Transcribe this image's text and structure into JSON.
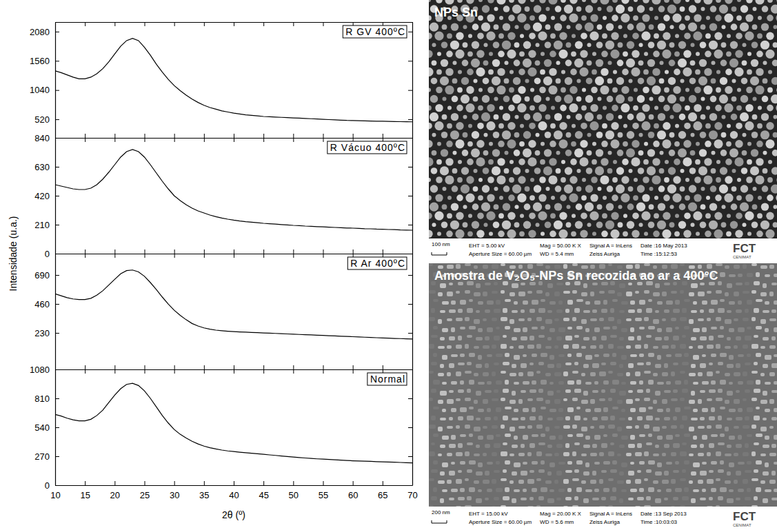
{
  "chart_data": [
    {
      "type": "line",
      "title": "R GV 400ºC",
      "color": "#000000",
      "tick_labels": "y",
      "xlim": [
        10,
        70
      ],
      "xticks": [
        10,
        15,
        20,
        25,
        30,
        35,
        40,
        45,
        50,
        55,
        60,
        65,
        70
      ],
      "ylim": [
        190,
        2250
      ],
      "yticks": [
        520,
        1040,
        1560,
        2080
      ],
      "x": [
        10,
        11,
        12,
        13,
        14,
        15,
        16,
        17,
        18,
        19,
        20,
        21,
        22,
        23,
        24,
        25,
        26,
        27,
        28,
        29,
        30,
        31,
        32,
        33,
        34,
        35,
        36,
        37,
        38,
        39,
        40,
        41,
        42,
        43,
        44,
        45,
        46,
        47,
        48,
        49,
        50,
        51,
        52,
        53,
        54,
        55,
        56,
        57,
        58,
        59,
        60,
        61,
        62,
        63,
        64,
        65,
        66,
        67,
        68,
        69,
        70
      ],
      "values": [
        1380,
        1350,
        1310,
        1270,
        1240,
        1240,
        1270,
        1330,
        1420,
        1540,
        1680,
        1820,
        1920,
        1960,
        1920,
        1800,
        1660,
        1500,
        1360,
        1230,
        1120,
        1030,
        950,
        880,
        820,
        770,
        730,
        700,
        670,
        650,
        630,
        615,
        600,
        590,
        580,
        570,
        565,
        560,
        555,
        550,
        545,
        540,
        535,
        530,
        525,
        520,
        515,
        510,
        505,
        500,
        498,
        495,
        492,
        490,
        487,
        485,
        482,
        480,
        478,
        476,
        475
      ]
    },
    {
      "type": "line",
      "title": "R Vácuo 400ºC",
      "color": "#000000",
      "tick_labels": "y",
      "xlim": [
        10,
        70
      ],
      "xticks": [
        10,
        15,
        20,
        25,
        30,
        35,
        40,
        45,
        50,
        55,
        60,
        65,
        70
      ],
      "ylim": [
        0,
        840
      ],
      "yticks": [
        0,
        210,
        420,
        630,
        840
      ],
      "x": [
        10,
        11,
        12,
        13,
        14,
        15,
        16,
        17,
        18,
        19,
        20,
        21,
        22,
        23,
        24,
        25,
        26,
        27,
        28,
        29,
        30,
        31,
        32,
        33,
        34,
        35,
        36,
        37,
        38,
        39,
        40,
        41,
        42,
        43,
        44,
        45,
        46,
        47,
        48,
        49,
        50,
        51,
        52,
        53,
        54,
        55,
        56,
        57,
        58,
        59,
        60,
        61,
        62,
        63,
        64,
        65,
        66,
        67,
        68,
        69,
        70
      ],
      "values": [
        500,
        490,
        480,
        470,
        465,
        465,
        475,
        500,
        540,
        590,
        645,
        700,
        740,
        755,
        740,
        700,
        645,
        585,
        525,
        470,
        420,
        385,
        355,
        330,
        310,
        295,
        280,
        268,
        258,
        250,
        243,
        237,
        232,
        228,
        224,
        220,
        217,
        214,
        211,
        208,
        205,
        203,
        200,
        198,
        196,
        194,
        192,
        190,
        188,
        186,
        185,
        183,
        181,
        180,
        178,
        177,
        175,
        174,
        172,
        171,
        170
      ]
    },
    {
      "type": "line",
      "title": "R Ar 400ºC",
      "color": "#000000",
      "tick_labels": "y",
      "xlim": [
        10,
        70
      ],
      "xticks": [
        10,
        15,
        20,
        25,
        30,
        35,
        40,
        45,
        50,
        55,
        60,
        65,
        70
      ],
      "ylim": [
        -60,
        860
      ],
      "yticks": [
        230,
        460,
        690
      ],
      "x": [
        10,
        11,
        12,
        13,
        14,
        15,
        16,
        17,
        18,
        19,
        20,
        21,
        22,
        23,
        24,
        25,
        26,
        27,
        28,
        29,
        30,
        31,
        32,
        33,
        34,
        35,
        36,
        37,
        38,
        39,
        40,
        41,
        42,
        43,
        44,
        45,
        46,
        47,
        48,
        49,
        50,
        51,
        52,
        53,
        54,
        55,
        56,
        57,
        58,
        59,
        60,
        61,
        62,
        63,
        64,
        65,
        66,
        67,
        68,
        69,
        70
      ],
      "values": [
        540,
        525,
        510,
        500,
        495,
        495,
        505,
        530,
        565,
        610,
        655,
        700,
        725,
        730,
        715,
        680,
        630,
        575,
        515,
        460,
        410,
        370,
        335,
        305,
        285,
        270,
        260,
        252,
        247,
        243,
        240,
        238,
        236,
        234,
        232,
        230,
        228,
        226,
        224,
        222,
        220,
        218,
        216,
        214,
        212,
        210,
        208,
        206,
        204,
        202,
        200,
        198,
        196,
        194,
        192,
        190,
        188,
        186,
        185,
        183,
        182
      ]
    },
    {
      "type": "line",
      "title": "Normal",
      "color": "#000000",
      "xlim": [
        10,
        70
      ],
      "xticks": [
        10,
        15,
        20,
        25,
        30,
        35,
        40,
        45,
        50,
        55,
        60,
        65,
        70
      ],
      "ylim": [
        0,
        1080
      ],
      "yticks": [
        0,
        270,
        540,
        810,
        1080
      ],
      "x": [
        10,
        11,
        12,
        13,
        14,
        15,
        16,
        17,
        18,
        19,
        20,
        21,
        22,
        23,
        24,
        25,
        26,
        27,
        28,
        29,
        30,
        31,
        32,
        33,
        34,
        35,
        36,
        37,
        38,
        39,
        40,
        41,
        42,
        43,
        44,
        45,
        46,
        47,
        48,
        49,
        50,
        51,
        52,
        53,
        54,
        55,
        56,
        57,
        58,
        59,
        60,
        61,
        62,
        63,
        64,
        65,
        66,
        67,
        68,
        69,
        70
      ],
      "values": [
        660,
        645,
        625,
        610,
        600,
        600,
        615,
        650,
        700,
        770,
        840,
        900,
        940,
        950,
        930,
        880,
        810,
        730,
        650,
        580,
        520,
        475,
        440,
        410,
        385,
        365,
        350,
        338,
        328,
        320,
        314,
        308,
        303,
        298,
        293,
        288,
        283,
        278,
        273,
        268,
        263,
        258,
        254,
        250,
        246,
        243,
        240,
        237,
        234,
        231,
        228,
        226,
        224,
        222,
        220,
        218,
        216,
        214,
        212,
        210,
        208
      ]
    }
  ],
  "shared_axes": {
    "xlabel": "2θ (º)",
    "ylabel": "Intensidade (u.a.)"
  },
  "images": [
    {
      "label": "NPs Sn",
      "scale_bar": "100 nm",
      "info": [
        [
          "EHT = 5.00 kV",
          "Aperture Size = 60.00 µm"
        ],
        [
          "Mag = 50.00 K X",
          "WD = 5.4 mm"
        ],
        [
          "Signal A = InLens",
          "Zeiss Auriga"
        ],
        [
          "Date :16 May 2013",
          "Time :15:12:53"
        ]
      ],
      "logo": "FCT",
      "logo_sub": "CENIMAT"
    },
    {
      "label": "Amostra de V₂O₅-NPs Sn recozida ao ar a 400°C",
      "scale_bar": "200 nm",
      "info": [
        [
          "EHT = 15.00 kV",
          "Aperture Size = 60.00 µm"
        ],
        [
          "Mag = 20.00 K X",
          "WD = 5.6 mm"
        ],
        [
          "Signal A = InLens",
          "Zeiss Auriga"
        ],
        [
          "Date :13 Sep 2013",
          "Time :10:03:03"
        ]
      ],
      "logo": "FCT",
      "logo_sub": "CENIMAT"
    }
  ]
}
